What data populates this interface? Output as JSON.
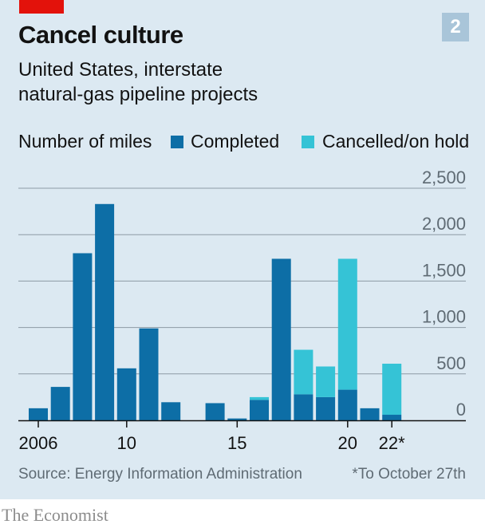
{
  "header": {
    "title": "Cancel culture",
    "badge": "2",
    "subtitle_lines": [
      "United States, interstate",
      "natural-gas pipeline projects"
    ]
  },
  "legend": {
    "unit_label": "Number of miles",
    "completed_label": "Completed",
    "cancelled_label": "Cancelled/on hold"
  },
  "colors": {
    "completed": "#0d6ea6",
    "cancelled": "#35c3d6",
    "gridline": "#8c9aa5",
    "panel": "#dce9f2"
  },
  "footer": {
    "source": "Source: Energy Information Administration",
    "footnote": "*To October 27th",
    "brand": "The Economist"
  },
  "chart_data": {
    "type": "bar",
    "stacked": true,
    "categories": [
      "2006",
      "2007",
      "2008",
      "2009",
      "2010",
      "2011",
      "2012",
      "2013",
      "2014",
      "2015",
      "2016",
      "2017",
      "2018",
      "2019",
      "2020",
      "2021",
      "2022"
    ],
    "series": [
      {
        "name": "Completed",
        "values": [
          130,
          360,
          1800,
          2330,
          560,
          990,
          195,
          0,
          185,
          20,
          220,
          1740,
          280,
          250,
          330,
          130,
          60
        ]
      },
      {
        "name": "Cancelled/on hold",
        "values": [
          0,
          0,
          0,
          0,
          0,
          0,
          0,
          0,
          0,
          0,
          30,
          0,
          480,
          330,
          1410,
          0,
          550
        ]
      }
    ],
    "x_tick_labels": [
      {
        "category": "2006",
        "label": "2006"
      },
      {
        "category": "2010",
        "label": "10"
      },
      {
        "category": "2015",
        "label": "15"
      },
      {
        "category": "2020",
        "label": "20"
      },
      {
        "category": "2022",
        "label": "22*"
      }
    ],
    "y_ticks": [
      0,
      500,
      1000,
      1500,
      2000,
      2500
    ],
    "y_tick_labels": [
      "0",
      "500",
      "1,000",
      "1,500",
      "2,000",
      "2,500"
    ],
    "ylim": [
      0,
      2500
    ],
    "grid": true,
    "y_axis_side": "right",
    "legend_position": "top-left"
  }
}
